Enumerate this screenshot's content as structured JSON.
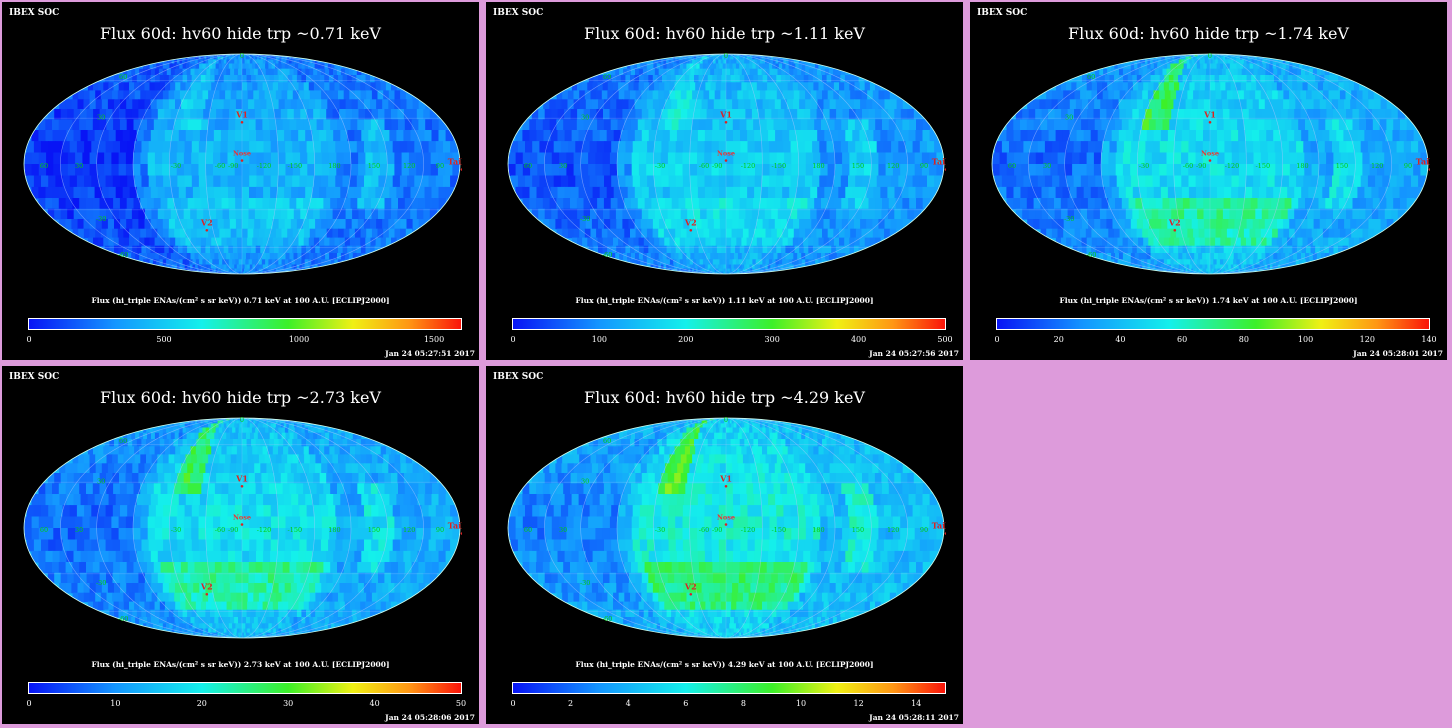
{
  "panels": [
    {
      "header": "IBEX SOC",
      "title": "Flux   60d: hv60 hide trp ~0.71 keV",
      "caption": "Flux (hi_triple ENAs/(cm² s sr keV))  0.71 keV at 100 A.U. [ECLIPJ2000]",
      "timestamp": "Jan 24 05:27:51 2017",
      "colorbar_ticks": [
        "0",
        "500",
        "1000",
        "1500"
      ],
      "colorbar_max": 1600,
      "level": 0.28
    },
    {
      "header": "IBEX SOC",
      "title": "Flux   60d: hv60 hide trp ~1.11 keV",
      "caption": "Flux (hi_triple ENAs/(cm² s sr keV))  1.11 keV at 100 A.U. [ECLIPJ2000]",
      "timestamp": "Jan 24 05:27:56 2017",
      "colorbar_ticks": [
        "0",
        "100",
        "200",
        "300",
        "400",
        "500"
      ],
      "colorbar_max": 500,
      "level": 0.38
    },
    {
      "header": "IBEX SOC",
      "title": "Flux   60d: hv60 hide trp ~1.74 keV",
      "caption": "Flux (hi_triple ENAs/(cm² s sr keV))  1.74 keV at 100 A.U. [ECLIPJ2000]",
      "timestamp": "Jan 24 05:28:01 2017",
      "colorbar_ticks": [
        "0",
        "20",
        "40",
        "60",
        "80",
        "100",
        "120",
        "140"
      ],
      "colorbar_max": 140,
      "level": 0.45
    },
    {
      "header": "IBEX SOC",
      "title": "Flux   60d: hv60 hide trp ~2.73 keV",
      "caption": "Flux (hi_triple ENAs/(cm² s sr keV))  2.73 keV at 100 A.U. [ECLIPJ2000]",
      "timestamp": "Jan 24 05:28:06 2017",
      "colorbar_ticks": [
        "0",
        "10",
        "20",
        "30",
        "40",
        "50"
      ],
      "colorbar_max": 50,
      "level": 0.45
    },
    {
      "header": "IBEX SOC",
      "title": "Flux   60d: hv60 hide trp ~4.29 keV",
      "caption": "Flux (hi_triple ENAs/(cm² s sr keV))  4.29 keV at 100 A.U. [ECLIPJ2000]",
      "timestamp": "Jan 24 05:28:11 2017",
      "colorbar_ticks": [
        "0",
        "2",
        "4",
        "6",
        "8",
        "10",
        "12",
        "14"
      ],
      "colorbar_max": 15,
      "level": 0.52
    }
  ],
  "map_labels": {
    "meridians": [
      "60",
      "30",
      "0",
      "-30",
      "-60",
      "-90",
      "-120",
      "-150",
      "180",
      "150",
      "120",
      "90"
    ],
    "parallels": [
      "60",
      "30",
      "-30",
      "-60"
    ],
    "markers": [
      "V1",
      "V2",
      "Nose",
      "Tail"
    ]
  },
  "chart_data": [
    {
      "type": "heatmap",
      "title": "Flux   60d: hv60 hide trp ~0.71 keV",
      "energy_keV": 0.71,
      "colorbar_range": [
        0,
        1600
      ],
      "colorbar_ticks": [
        0,
        500,
        1000,
        1500
      ],
      "projection": "Mollweide all-sky",
      "frame": "ECLIPJ2000"
    },
    {
      "type": "heatmap",
      "title": "Flux   60d: hv60 hide trp ~1.11 keV",
      "energy_keV": 1.11,
      "colorbar_range": [
        0,
        500
      ],
      "colorbar_ticks": [
        0,
        100,
        200,
        300,
        400,
        500
      ],
      "projection": "Mollweide all-sky",
      "frame": "ECLIPJ2000"
    },
    {
      "type": "heatmap",
      "title": "Flux   60d: hv60 hide trp ~1.74 keV",
      "energy_keV": 1.74,
      "colorbar_range": [
        0,
        140
      ],
      "colorbar_ticks": [
        0,
        20,
        40,
        60,
        80,
        100,
        120,
        140
      ],
      "projection": "Mollweide all-sky",
      "frame": "ECLIPJ2000"
    },
    {
      "type": "heatmap",
      "title": "Flux   60d: hv60 hide trp ~2.73 keV",
      "energy_keV": 2.73,
      "colorbar_range": [
        0,
        50
      ],
      "colorbar_ticks": [
        0,
        10,
        20,
        30,
        40,
        50
      ],
      "projection": "Mollweide all-sky",
      "frame": "ECLIPJ2000"
    },
    {
      "type": "heatmap",
      "title": "Flux   60d: hv60 hide trp ~4.29 keV",
      "energy_keV": 4.29,
      "colorbar_range": [
        0,
        15
      ],
      "colorbar_ticks": [
        0,
        2,
        4,
        6,
        8,
        10,
        12,
        14
      ],
      "projection": "Mollweide all-sky",
      "frame": "ECLIPJ2000"
    }
  ]
}
